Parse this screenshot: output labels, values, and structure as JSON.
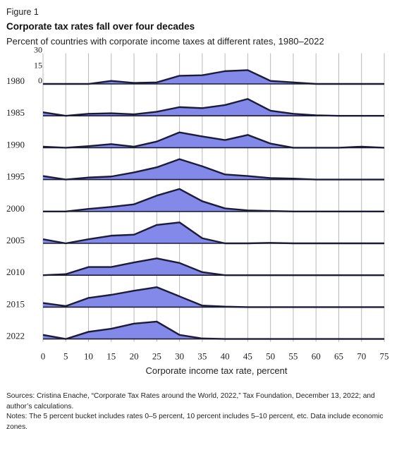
{
  "figure_label": "Figure 1",
  "sources": "Sources: Cristina Enache, “Corporate Tax Rates around the World, 2022,” Tax Foundation, December 13, 2022; and author’s calculations.",
  "notes": "Notes: The 5 percent bucket includes rates 0–5 percent, 10 percent includes 5–10 percent, etc. Data include economic zones.",
  "colors": {
    "fill": "#8289e8",
    "line": "#1c1c3a",
    "grid": "#b8b8b8"
  },
  "chart_data": {
    "type": "area",
    "title": "Corporate tax rates fall over four decades",
    "subtitle": "Percent of countries with corporate income taxes at different rates, 1980–2022",
    "xlabel": "Corporate income tax rate, percent",
    "ylabel": "",
    "x": [
      0,
      5,
      10,
      15,
      20,
      25,
      30,
      35,
      40,
      45,
      50,
      55,
      60,
      65,
      70,
      75
    ],
    "xlim": [
      0,
      75
    ],
    "ylim": [
      0,
      30
    ],
    "y_ticks": [
      "30",
      "15",
      "0"
    ],
    "grid": true,
    "series": [
      {
        "name": "1980",
        "values": [
          0,
          0,
          0,
          3,
          1,
          1.5,
          8,
          8.5,
          12.5,
          13.5,
          3,
          1.5,
          0,
          0,
          0,
          0
        ]
      },
      {
        "name": "1985",
        "values": [
          3.5,
          0,
          2,
          2.5,
          1.5,
          4,
          8.5,
          7.5,
          10.5,
          16.5,
          5,
          2,
          0.5,
          0,
          0,
          0
        ]
      },
      {
        "name": "1990",
        "values": [
          1,
          0,
          1.5,
          3.5,
          1,
          6,
          15,
          11,
          7.5,
          12.5,
          4,
          0,
          0,
          0,
          1,
          0
        ]
      },
      {
        "name": "1995",
        "values": [
          3.5,
          0,
          2,
          3,
          7,
          12,
          20,
          13,
          5,
          3.5,
          1.5,
          1,
          0,
          0,
          0,
          0
        ]
      },
      {
        "name": "2000",
        "values": [
          0,
          0,
          2.5,
          4.5,
          7,
          15.5,
          22,
          10,
          3,
          1,
          0.5,
          0,
          0,
          0,
          0,
          0
        ]
      },
      {
        "name": "2005",
        "values": [
          4,
          0,
          4,
          7.5,
          8.5,
          18,
          20.5,
          5,
          0,
          0,
          0.5,
          0,
          0,
          0,
          0,
          0
        ]
      },
      {
        "name": "2010",
        "values": [
          0,
          1,
          8,
          8,
          12.5,
          16.5,
          12,
          3,
          0,
          0,
          0,
          0,
          0,
          0,
          0,
          0
        ]
      },
      {
        "name": "2015",
        "values": [
          4,
          1,
          9,
          12,
          16,
          19.5,
          10.5,
          1.5,
          0.5,
          0,
          0,
          0,
          0,
          0,
          0,
          0
        ]
      },
      {
        "name": "2022",
        "values": [
          4,
          0,
          7,
          10,
          15,
          17,
          4,
          0.5,
          0,
          0,
          0,
          0,
          0,
          0,
          0,
          0
        ]
      }
    ]
  }
}
